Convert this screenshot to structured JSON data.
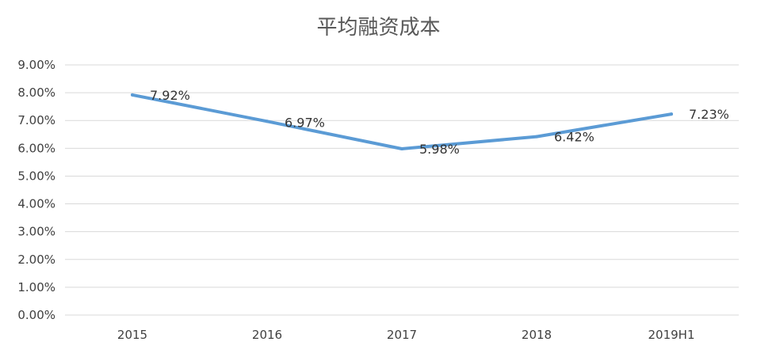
{
  "chart_data": {
    "type": "line",
    "title": "平均融资成本",
    "xlabel": "",
    "ylabel": "",
    "categories": [
      "2015",
      "2016",
      "2017",
      "2018",
      "2019H1"
    ],
    "series": [
      {
        "values": [
          7.92,
          6.97,
          5.98,
          6.42,
          7.23
        ]
      }
    ],
    "data_labels": [
      "7.92%",
      "6.97%",
      "5.98%",
      "6.42%",
      "7.23%"
    ],
    "y_tick_labels": [
      "0.00%",
      "1.00%",
      "2.00%",
      "3.00%",
      "4.00%",
      "5.00%",
      "6.00%",
      "7.00%",
      "8.00%",
      "9.00%"
    ],
    "ylim": [
      0,
      9
    ],
    "grid": true,
    "legend": "none",
    "line_color": "#5B9BD5",
    "grid_color": "#D9D9D9"
  }
}
